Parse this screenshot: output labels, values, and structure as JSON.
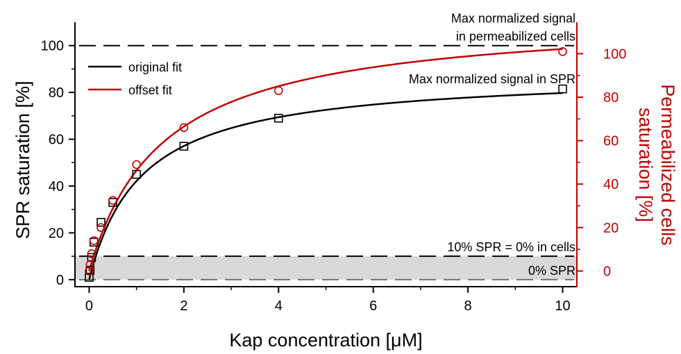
{
  "chart_data": {
    "type": "scatter",
    "xlabel": "Kap concentration [μM]",
    "ylabel_left": "SPR saturation [%]",
    "ylabel_right_lines": [
      "Permeabilized cells",
      "saturation [%]"
    ],
    "xlim": [
      -0.3,
      10.3
    ],
    "ylim_left": [
      -3,
      110
    ],
    "ylim_right": [
      -7.2,
      114.5
    ],
    "right_axis_offset": 10,
    "x_ticks": [
      0,
      2,
      4,
      6,
      8,
      10
    ],
    "y_ticks_left": [
      0,
      20,
      40,
      60,
      80,
      100
    ],
    "y_ticks_right": [
      0,
      20,
      40,
      60,
      80,
      100
    ],
    "grid": false,
    "legend": {
      "position": "top-left",
      "entries": [
        {
          "label": "original fit",
          "color": "#000000"
        },
        {
          "label": "offset fit",
          "color": "#c00000"
        }
      ]
    },
    "series": [
      {
        "axis": "left",
        "color": "#000000",
        "marker": "square",
        "x": [
          0,
          0.02,
          0.05,
          0.1,
          0.25,
          0.5,
          1,
          2,
          4,
          10
        ],
        "y": [
          1,
          4,
          9.5,
          16,
          24.5,
          33,
          45,
          57,
          69,
          81.5
        ]
      },
      {
        "axis": "right",
        "color": "#c00000",
        "marker": "circle",
        "x": [
          0,
          0.02,
          0.05,
          0.1,
          0.25,
          0.5,
          1,
          2,
          4,
          10
        ],
        "y": [
          0,
          3,
          8,
          14,
          20,
          32.5,
          49,
          66,
          83,
          101
        ]
      }
    ],
    "fits": [
      {
        "axis": "left",
        "color": "#000000",
        "bmax": 88.5,
        "kd": 1.1,
        "offset": 0
      },
      {
        "axis": "right",
        "color": "#c00000",
        "bmax": 118,
        "kd": 1.55,
        "offset": 0
      }
    ],
    "reference_lines": [
      {
        "y": 100,
        "color": "#000000",
        "label_lines": [
          "Max normalized signal",
          "in permeabilized cells"
        ]
      },
      {
        "y": 10,
        "color": "#000000",
        "label_lines": [
          "10% SPR = 0% in cells"
        ]
      },
      {
        "y": 0,
        "color": "#707070",
        "label_lines": [
          "0% SPR"
        ]
      }
    ],
    "annotations": [
      {
        "text": "Max normalized signal in SPR"
      }
    ],
    "shaded_band": {
      "y_from": 0,
      "y_to": 10,
      "color": "#d9d9d9"
    },
    "colors": {
      "left_axis": "#000000",
      "right_axis": "#c00000"
    }
  }
}
